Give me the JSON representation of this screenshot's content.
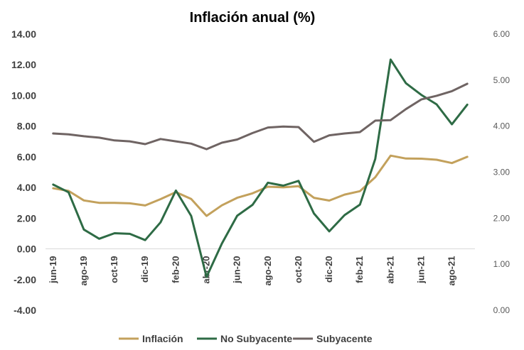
{
  "chart_data": {
    "type": "line",
    "title": "Inflación anual (%)",
    "x": [
      "jun-19",
      "jul-19",
      "ago-19",
      "sep-19",
      "oct-19",
      "nov-19",
      "dic-19",
      "ene-20",
      "feb-20",
      "mar-20",
      "abr-20",
      "may-20",
      "jun-20",
      "jul-20",
      "ago-20",
      "sep-20",
      "oct-20",
      "nov-20",
      "dic-20",
      "ene-21",
      "feb-21",
      "mar-21",
      "abr-21",
      "may-21",
      "jun-21",
      "jul-21",
      "ago-21",
      "sep-21"
    ],
    "x_tick_labels": [
      "jun-19",
      "ago-19",
      "oct-19",
      "dic-19",
      "feb-20",
      "abr-20",
      "jun-20",
      "ago-20",
      "oct-20",
      "dic-20",
      "feb-21",
      "abr-21",
      "jun-21",
      "ago-21"
    ],
    "y_left": {
      "min": -4,
      "max": 14,
      "step": 2,
      "tick_labels": [
        "-4.00",
        "-2.00",
        "0.00",
        "2.00",
        "4.00",
        "6.00",
        "8.00",
        "10.00",
        "12.00",
        "14.00"
      ]
    },
    "y_right": {
      "min": 0,
      "max": 6,
      "step": 1,
      "tick_labels": [
        "0.00",
        "1.00",
        "2.00",
        "3.00",
        "4.00",
        "5.00",
        "6.00"
      ]
    },
    "grid": false,
    "legend_position": "bottom",
    "series": [
      {
        "name": "Inflación",
        "axis": "left",
        "color": "#C3A15C",
        "values": [
          3.95,
          3.78,
          3.16,
          3.0,
          3.0,
          2.97,
          2.83,
          3.24,
          3.7,
          3.25,
          2.15,
          2.84,
          3.33,
          3.62,
          4.05,
          4.01,
          4.09,
          3.33,
          3.15,
          3.54,
          3.76,
          4.67,
          6.08,
          5.89,
          5.88,
          5.81,
          5.59,
          6.0
        ]
      },
      {
        "name": "No Subyacente",
        "axis": "left",
        "color": "#2E6B45",
        "values": [
          4.19,
          3.69,
          1.26,
          0.66,
          1.02,
          0.98,
          0.57,
          1.73,
          3.8,
          2.15,
          -1.83,
          0.35,
          2.16,
          2.87,
          4.31,
          4.12,
          4.43,
          2.31,
          1.14,
          2.2,
          2.88,
          5.86,
          12.34,
          10.8,
          10.04,
          9.42,
          8.12,
          9.4
        ]
      },
      {
        "name": "Subyacente",
        "axis": "right",
        "color": "#6F6463",
        "values": [
          3.84,
          3.82,
          3.78,
          3.75,
          3.69,
          3.67,
          3.61,
          3.72,
          3.67,
          3.62,
          3.5,
          3.64,
          3.71,
          3.85,
          3.97,
          3.99,
          3.98,
          3.66,
          3.8,
          3.84,
          3.87,
          4.12,
          4.13,
          4.37,
          4.58,
          4.66,
          4.76,
          4.92
        ]
      }
    ]
  }
}
